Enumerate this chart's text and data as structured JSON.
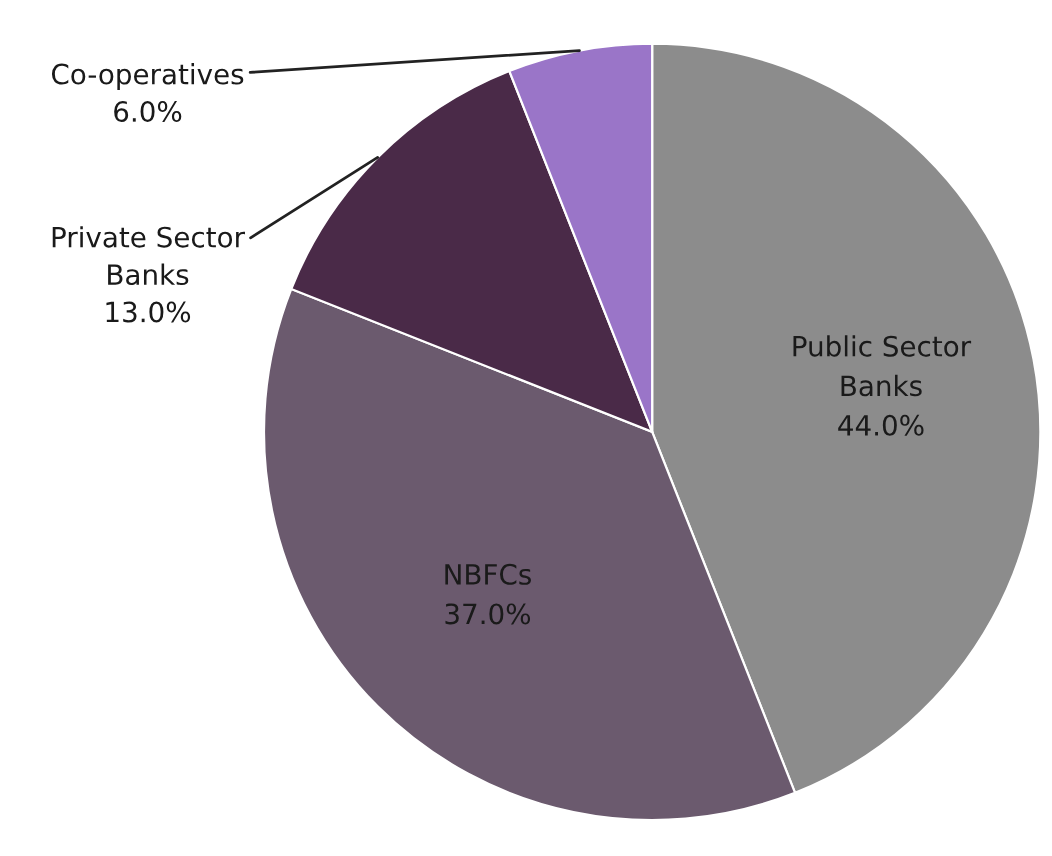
{
  "chart_data": {
    "type": "pie",
    "categories": [
      "Public Sector Banks",
      "NBFCs",
      "Private Sector Banks",
      "Co-operatives"
    ],
    "values": [
      44,
      37,
      13,
      6
    ],
    "colors": [
      "#8c8c8c",
      "#6b5a6e",
      "#4a2a48",
      "#9a75c8"
    ],
    "value_labels": [
      "44.0%",
      "37.0%",
      "13.0%",
      "6.0%"
    ]
  }
}
